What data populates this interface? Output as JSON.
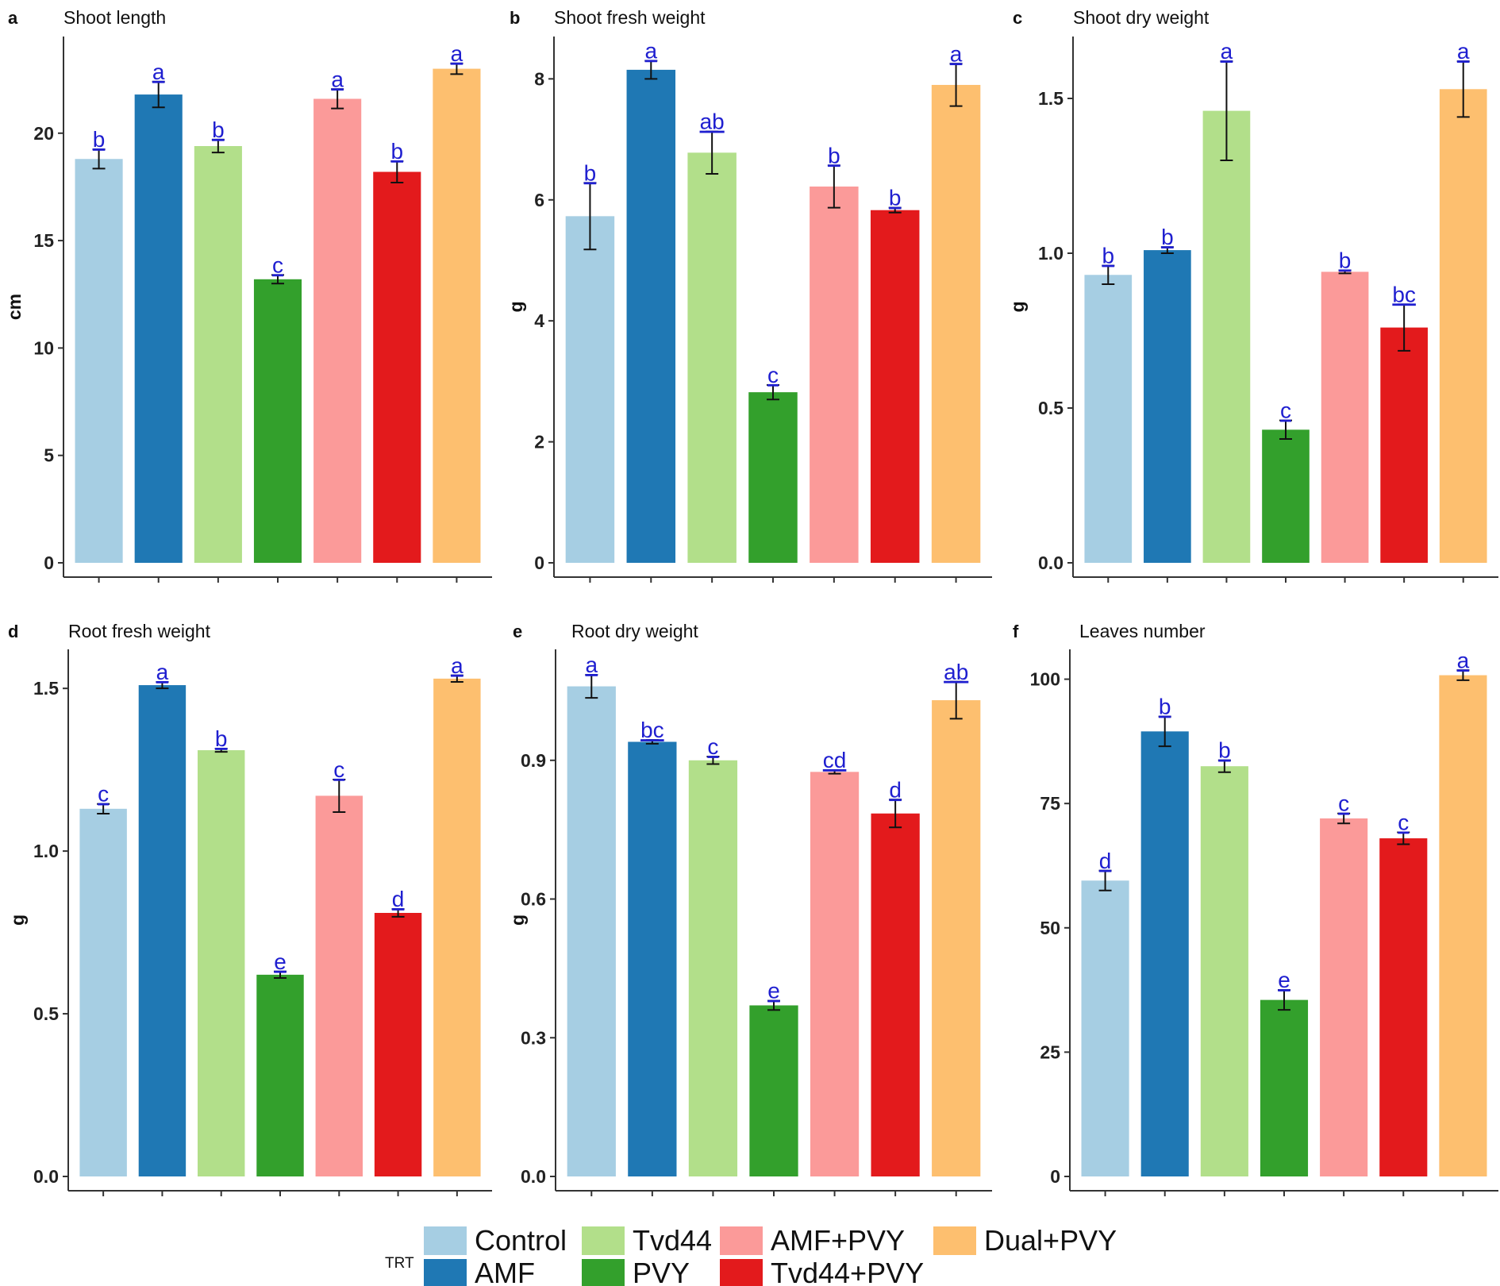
{
  "chart_data": [
    {
      "type": "bar",
      "letter": "a",
      "title": "Shoot length",
      "ylabel": "cm",
      "ylim": [
        0,
        24.5
      ],
      "yticks": [
        0,
        5,
        10,
        15,
        20
      ],
      "categories": [
        "Control",
        "AMF",
        "Tvd44",
        "PVY",
        "AMF+PVY",
        "Tvd44+PVY",
        "Dual+PVY"
      ],
      "values": [
        18.8,
        21.8,
        19.4,
        13.2,
        21.6,
        18.2,
        23.0
      ],
      "errors": [
        0.45,
        0.6,
        0.3,
        0.2,
        0.45,
        0.5,
        0.25
      ],
      "labels": [
        "b",
        "a",
        "b",
        "c",
        "a",
        "b",
        "a"
      ]
    },
    {
      "type": "bar",
      "letter": "b",
      "title": "Shoot fresh weight",
      "ylabel": "g",
      "ylim": [
        0,
        8.7
      ],
      "yticks": [
        0,
        2,
        4,
        6,
        8
      ],
      "categories": [
        "Control",
        "AMF",
        "Tvd44",
        "PVY",
        "AMF+PVY",
        "Tvd44+PVY",
        "Dual+PVY"
      ],
      "values": [
        5.73,
        8.15,
        6.78,
        2.82,
        6.22,
        5.83,
        7.9
      ],
      "errors": [
        0.55,
        0.15,
        0.35,
        0.12,
        0.35,
        0.04,
        0.35
      ],
      "labels": [
        "b",
        "a",
        "ab",
        "c",
        "b",
        "b",
        "a"
      ]
    },
    {
      "type": "bar",
      "letter": "c",
      "title": "Shoot dry weight",
      "ylabel": "g",
      "ylim": [
        0,
        1.7
      ],
      "yticks": [
        0.0,
        0.5,
        1.0,
        1.5
      ],
      "categories": [
        "Control",
        "AMF",
        "Tvd44",
        "PVY",
        "AMF+PVY",
        "Tvd44+PVY",
        "Dual+PVY"
      ],
      "values": [
        0.93,
        1.01,
        1.46,
        0.43,
        0.94,
        0.76,
        1.53
      ],
      "errors": [
        0.03,
        0.01,
        0.16,
        0.03,
        0.005,
        0.075,
        0.09
      ],
      "labels": [
        "b",
        "b",
        "a",
        "c",
        "b",
        "bc",
        "a"
      ]
    },
    {
      "type": "bar",
      "letter": "d",
      "title": "Root fresh weight",
      "ylabel": "g",
      "ylim": [
        0,
        1.62
      ],
      "yticks": [
        0.0,
        0.5,
        1.0,
        1.5
      ],
      "categories": [
        "Control",
        "AMF",
        "Tvd44",
        "PVY",
        "AMF+PVY",
        "Tvd44+PVY",
        "Dual+PVY"
      ],
      "values": [
        1.13,
        1.51,
        1.31,
        0.62,
        1.17,
        0.81,
        1.53
      ],
      "errors": [
        0.015,
        0.01,
        0.005,
        0.01,
        0.05,
        0.012,
        0.01
      ],
      "labels": [
        "c",
        "a",
        "b",
        "e",
        "c",
        "d",
        "a"
      ]
    },
    {
      "type": "bar",
      "letter": "e",
      "title": "Root dry weight",
      "ylabel": "g",
      "ylim": [
        0,
        1.14
      ],
      "yticks": [
        0.0,
        0.3,
        0.6,
        0.9
      ],
      "categories": [
        "Control",
        "AMF",
        "Tvd44",
        "PVY",
        "AMF+PVY",
        "Tvd44+PVY",
        "Dual+PVY"
      ],
      "values": [
        1.06,
        0.94,
        0.9,
        0.37,
        0.875,
        0.785,
        1.03
      ],
      "errors": [
        0.025,
        0.004,
        0.008,
        0.01,
        0.004,
        0.03,
        0.04
      ],
      "labels": [
        "a",
        "bc",
        "c",
        "e",
        "cd",
        "d",
        "ab"
      ]
    },
    {
      "type": "bar",
      "letter": "f",
      "title": "Leaves number",
      "ylabel": "",
      "ylim": [
        0,
        106
      ],
      "yticks": [
        0,
        25,
        50,
        75,
        100
      ],
      "categories": [
        "Control",
        "AMF",
        "Tvd44",
        "PVY",
        "AMF+PVY",
        "Tvd44+PVY",
        "Dual+PVY"
      ],
      "values": [
        59.5,
        89.5,
        82.5,
        35.5,
        72.0,
        68.0,
        100.8
      ],
      "errors": [
        2.0,
        3.0,
        1.2,
        2.0,
        1.0,
        1.2,
        1.0
      ],
      "labels": [
        "d",
        "b",
        "b",
        "e",
        "c",
        "c",
        "a"
      ]
    }
  ],
  "legend": {
    "title": "TRT",
    "items": [
      {
        "label": "Control",
        "color": "#a6cee3"
      },
      {
        "label": "AMF",
        "color": "#1f78b4"
      },
      {
        "label": "Tvd44",
        "color": "#b2df8a"
      },
      {
        "label": "PVY",
        "color": "#33a02c"
      },
      {
        "label": "AMF+PVY",
        "color": "#fb9a99"
      },
      {
        "label": "Tvd44+PVY",
        "color": "#e31a1c"
      },
      {
        "label": "Dual+PVY",
        "color": "#fdbf6f"
      }
    ]
  },
  "colors": {
    "Control": "#a6cee3",
    "AMF": "#1f78b4",
    "Tvd44": "#b2df8a",
    "PVY": "#33a02c",
    "AMF+PVY": "#fb9a99",
    "Tvd44+PVY": "#e31a1c",
    "Dual+PVY": "#fdbf6f",
    "significance": "#1f1fd0"
  }
}
